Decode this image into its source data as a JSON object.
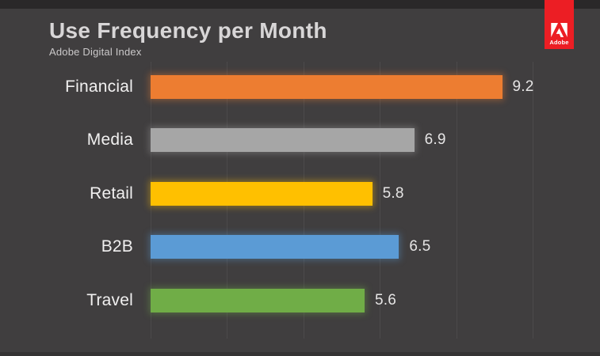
{
  "logo": {
    "brand": "Adobe",
    "tab_color": "#EC1E24",
    "icon": "adobe-a-icon"
  },
  "chart_data": {
    "type": "bar",
    "orientation": "horizontal",
    "title": "Use Frequency per Month",
    "subtitle": "Adobe Digital Index",
    "categories": [
      "Financial",
      "Media",
      "Retail",
      "B2B",
      "Travel"
    ],
    "values": [
      9.2,
      6.9,
      5.8,
      6.5,
      5.6
    ],
    "value_labels": [
      "9.2",
      "6.9",
      "5.8",
      "6.5",
      "5.6"
    ],
    "bar_colors": [
      "#ED7D31",
      "#A6A6A6",
      "#FFC000",
      "#5B9BD5",
      "#70AD47"
    ],
    "xlim": [
      0,
      10.6
    ],
    "xticks": [
      0,
      2,
      4,
      6,
      8,
      10
    ],
    "grid": true,
    "legend": false,
    "background_color": "#403E3F",
    "gridline_color": "#4C4A4B"
  }
}
